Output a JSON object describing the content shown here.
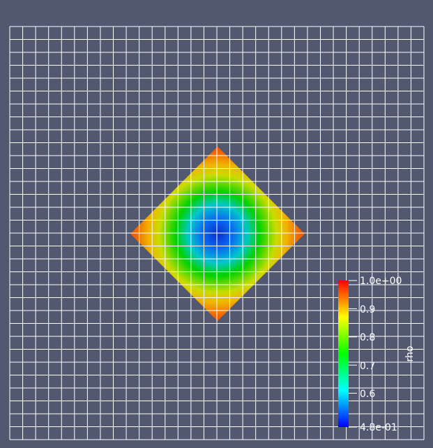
{
  "scalar_bar": {
    "title": "rho",
    "labels": [
      "1.0e+00",
      "0.9",
      "0.8",
      "0.7",
      "0.6",
      "4.8e-01"
    ],
    "values": [
      1.0,
      0.9,
      0.8,
      0.7,
      0.6,
      0.48
    ],
    "range": [
      0.48,
      1.0
    ],
    "colormap": [
      "#0000ff",
      "#00ffff",
      "#00ff00",
      "#ffff00",
      "#ff0000"
    ]
  },
  "colors": {
    "background": "#525870",
    "grid_lines": "#ffffff"
  }
}
